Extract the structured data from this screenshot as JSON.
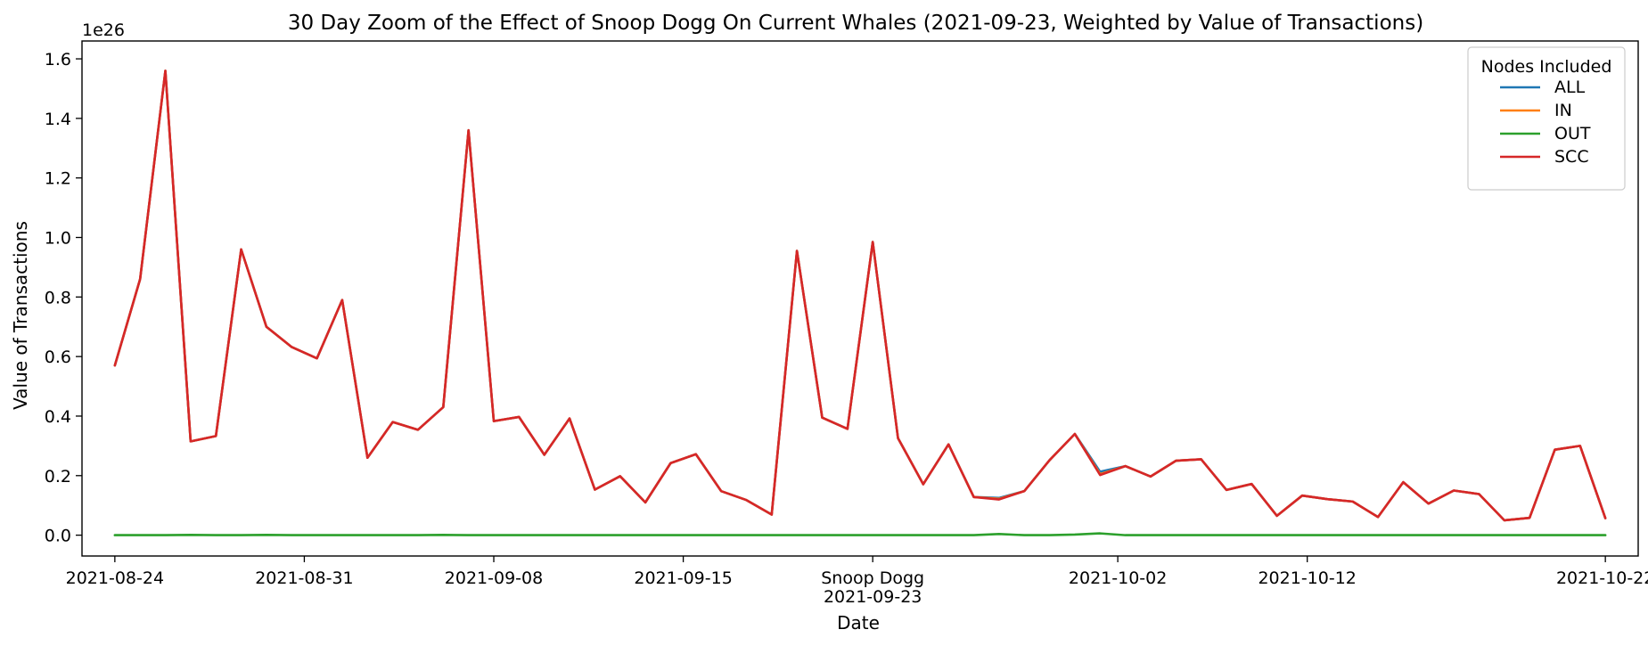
{
  "chart_data": {
    "type": "line",
    "title": "30 Day Zoom of the Effect of Snoop Dogg On Current Whales (2021-09-23, Weighted by Value of Transactions)",
    "xlabel": "Date",
    "ylabel": "Value of Transactions",
    "y_multiplier": "1e26",
    "ylim": [
      -0.07,
      1.66
    ],
    "yticks": [
      0.0,
      0.2,
      0.4,
      0.6,
      0.8,
      1.0,
      1.2,
      1.4,
      1.6
    ],
    "ytick_labels": [
      "0.0",
      "0.2",
      "0.4",
      "0.6",
      "0.8",
      "1.0",
      "1.2",
      "1.4",
      "1.6"
    ],
    "xlim_days": [
      -1.3,
      60.3
    ],
    "xticks": [
      {
        "day": 0,
        "label": "2021-08-24"
      },
      {
        "day": 7.5,
        "label": "2021-08-31"
      },
      {
        "day": 15,
        "label": "2021-09-08"
      },
      {
        "day": 22.5,
        "label": "2021-09-15"
      },
      {
        "day": 30,
        "label": "Snoop Dogg\n2021-09-23"
      },
      {
        "day": 39.7,
        "label": "2021-10-02"
      },
      {
        "day": 47.2,
        "label": "2021-10-12"
      },
      {
        "day": 59,
        "label": "2021-10-22"
      }
    ],
    "x": [
      0,
      1,
      2,
      3,
      4,
      5,
      6,
      7,
      8,
      9,
      10,
      11,
      12,
      13,
      14,
      15,
      16,
      17,
      18,
      19,
      20,
      21,
      22,
      23,
      24,
      25,
      26,
      27,
      28,
      29,
      30,
      31,
      32,
      33,
      34,
      35,
      36,
      37,
      38,
      39,
      40,
      41,
      42,
      43,
      44,
      45,
      46,
      47,
      48,
      49,
      50,
      51,
      52,
      53,
      54,
      55,
      56,
      57,
      58,
      59
    ],
    "legend_title": "Nodes Included",
    "legend_position": "top-right",
    "colors": {
      "ALL": "#1f77b4",
      "IN": "#ff7f0e",
      "OUT": "#2ca02c",
      "SCC": "#d62728"
    },
    "series": [
      {
        "name": "ALL",
        "values": [
          0.57,
          0.86,
          1.56,
          0.315,
          0.333,
          0.96,
          0.7,
          0.632,
          0.594,
          0.79,
          0.26,
          0.38,
          0.354,
          0.43,
          1.36,
          0.383,
          0.397,
          0.27,
          0.392,
          0.153,
          0.198,
          0.11,
          0.242,
          0.272,
          0.148,
          0.118,
          0.069,
          0.955,
          0.395,
          0.357,
          0.985,
          0.326,
          0.171,
          0.305,
          0.128,
          0.125,
          0.148,
          0.252,
          0.34,
          0.213,
          0.232,
          0.197,
          0.25,
          0.255,
          0.152,
          0.172,
          0.065,
          0.133,
          0.121,
          0.113,
          0.061,
          0.178,
          0.106,
          0.15,
          0.138,
          0.05,
          0.058,
          0.287,
          0.3,
          0.057
        ]
      },
      {
        "name": "IN",
        "values": [
          0.57,
          0.86,
          1.56,
          0.315,
          0.333,
          0.96,
          0.7,
          0.632,
          0.594,
          0.79,
          0.26,
          0.38,
          0.354,
          0.43,
          1.36,
          0.383,
          0.397,
          0.27,
          0.392,
          0.153,
          0.198,
          0.11,
          0.242,
          0.272,
          0.148,
          0.118,
          0.069,
          0.955,
          0.395,
          0.357,
          0.985,
          0.326,
          0.171,
          0.305,
          0.128,
          0.122,
          0.148,
          0.252,
          0.34,
          0.205,
          0.232,
          0.197,
          0.25,
          0.255,
          0.152,
          0.172,
          0.065,
          0.133,
          0.121,
          0.113,
          0.061,
          0.178,
          0.106,
          0.15,
          0.138,
          0.05,
          0.058,
          0.287,
          0.3,
          0.057
        ]
      },
      {
        "name": "OUT",
        "values": [
          0.0,
          0.0,
          0.0,
          0.001,
          0.0,
          0.0,
          0.001,
          0.0,
          0.0,
          0.0,
          0.0,
          0.0,
          0.0,
          0.001,
          0.0,
          0.0,
          0.0,
          0.0,
          0.0,
          0.0,
          0.0,
          0.0,
          0.0,
          0.0,
          0.0,
          0.0,
          0.0,
          0.0,
          0.0,
          0.0,
          0.0,
          0.0,
          0.0,
          0.0,
          0.0,
          0.004,
          0.0,
          0.0,
          0.002,
          0.006,
          0.0,
          0.0,
          0.0,
          0.0,
          0.0,
          0.0,
          0.0,
          0.0,
          0.0,
          0.0,
          0.0,
          0.0,
          0.0,
          0.0,
          0.0,
          0.0,
          0.0,
          0.0,
          0.0,
          0.0
        ]
      },
      {
        "name": "SCC",
        "values": [
          0.57,
          0.86,
          1.56,
          0.315,
          0.333,
          0.96,
          0.7,
          0.632,
          0.594,
          0.79,
          0.26,
          0.38,
          0.354,
          0.43,
          1.36,
          0.383,
          0.397,
          0.27,
          0.392,
          0.153,
          0.198,
          0.11,
          0.242,
          0.272,
          0.148,
          0.118,
          0.069,
          0.955,
          0.395,
          0.357,
          0.985,
          0.326,
          0.171,
          0.305,
          0.128,
          0.12,
          0.148,
          0.252,
          0.34,
          0.202,
          0.232,
          0.197,
          0.25,
          0.255,
          0.152,
          0.172,
          0.065,
          0.133,
          0.121,
          0.113,
          0.061,
          0.178,
          0.106,
          0.15,
          0.138,
          0.05,
          0.058,
          0.287,
          0.3,
          0.057
        ]
      }
    ]
  }
}
